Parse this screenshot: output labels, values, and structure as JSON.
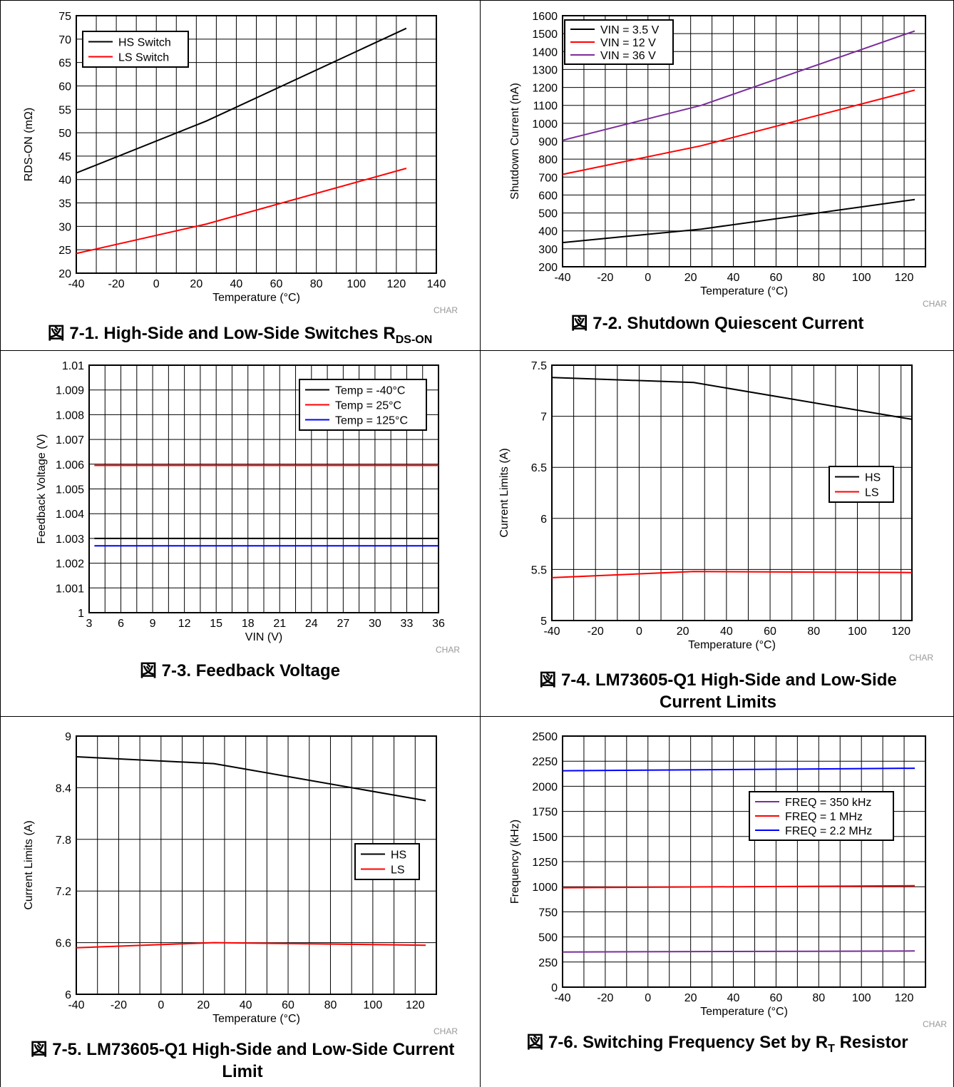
{
  "chart_data": [
    {
      "type": "line",
      "caption": "図 7-1. High-Side and Low-Side Switches R",
      "caption_sub": "DS-ON",
      "xlabel": "Temperature (°C)",
      "ylabel": "RDS-ON (mΩ)",
      "watermark": "CHAR",
      "xlim": [
        -40,
        140
      ],
      "ylim": [
        20,
        75
      ],
      "xticks": [
        "-40",
        "-20",
        "0",
        "20",
        "40",
        "60",
        "80",
        "100",
        "120",
        "140"
      ],
      "yticks": [
        "20",
        "25",
        "30",
        "35",
        "40",
        "45",
        "50",
        "55",
        "60",
        "65",
        "70",
        "75"
      ],
      "grid": true,
      "legend_position": "top-left",
      "series": [
        {
          "name": "HS Switch",
          "color": "#000000",
          "x": [
            -40,
            25,
            125
          ],
          "y": [
            41.4,
            52.5,
            72.3
          ]
        },
        {
          "name": "LS Switch",
          "color": "#ff0000",
          "x": [
            -40,
            25,
            125
          ],
          "y": [
            24.2,
            30.5,
            42.4
          ]
        }
      ]
    },
    {
      "type": "line",
      "caption": "図 7-2. Shutdown Quiescent Current",
      "xlabel": "Temperature (°C)",
      "ylabel": "Shutdown Current (nA)",
      "watermark": "CHAR",
      "xlim": [
        -40,
        130
      ],
      "ylim": [
        200,
        1600
      ],
      "xticks": [
        "-40",
        "-20",
        "0",
        "20",
        "40",
        "60",
        "80",
        "100",
        "120"
      ],
      "yticks": [
        "200",
        "300",
        "400",
        "500",
        "600",
        "700",
        "800",
        "900",
        "1000",
        "1100",
        "1200",
        "1300",
        "1400",
        "1500",
        "1600"
      ],
      "grid": true,
      "legend_position": "top-left",
      "series": [
        {
          "name": "VIN = 3.5 V",
          "color": "#000000",
          "x": [
            -40,
            25,
            125
          ],
          "y": [
            335,
            410,
            575
          ]
        },
        {
          "name": "VIN = 12 V",
          "color": "#ff0000",
          "x": [
            -40,
            25,
            125
          ],
          "y": [
            715,
            875,
            1185
          ]
        },
        {
          "name": "VIN = 36 V",
          "color": "#7b2d9a",
          "x": [
            -40,
            25,
            125
          ],
          "y": [
            905,
            1100,
            1515
          ]
        }
      ]
    },
    {
      "type": "line",
      "caption": "図 7-3. Feedback Voltage",
      "xlabel": "VIN (V)",
      "ylabel": "Feedback Voltage (V)",
      "watermark": "CHAR",
      "xlim": [
        3,
        36
      ],
      "ylim": [
        1,
        1.01
      ],
      "xticks": [
        "3",
        "6",
        "9",
        "12",
        "15",
        "18",
        "21",
        "24",
        "27",
        "30",
        "33",
        "36"
      ],
      "yticks": [
        "1",
        "1.001",
        "1.002",
        "1.003",
        "1.004",
        "1.005",
        "1.006",
        "1.007",
        "1.008",
        "1.009",
        "1.01"
      ],
      "grid": true,
      "legend_position": "top-right",
      "series": [
        {
          "name": "Temp = -40°C",
          "color": "#000000",
          "x": [
            3.5,
            36
          ],
          "y": [
            1.003,
            1.003
          ]
        },
        {
          "name": "Temp = 25°C",
          "color": "#ff0000",
          "x": [
            3.5,
            36
          ],
          "y": [
            1.00595,
            1.00595
          ]
        },
        {
          "name": "Temp = 125°C",
          "color": "#0000ff",
          "x": [
            3.5,
            36
          ],
          "y": [
            1.0027,
            1.0027
          ]
        }
      ]
    },
    {
      "type": "line",
      "caption": "図 7-4. LM73605-Q1 High-Side and Low-Side Current Limits",
      "xlabel": "Temperature (°C)",
      "ylabel": "Current Limits (A)",
      "watermark": "CHAR",
      "xlim": [
        -40,
        125
      ],
      "ylim": [
        5,
        7.5
      ],
      "xticks": [
        "-40",
        "-20",
        "0",
        "20",
        "40",
        "60",
        "80",
        "100",
        "120"
      ],
      "yticks": [
        "5",
        "5.5",
        "6",
        "6.5",
        "7",
        "7.5"
      ],
      "grid": true,
      "legend_position": "right",
      "series": [
        {
          "name": "HS",
          "color": "#000000",
          "x": [
            -40,
            25,
            125
          ],
          "y": [
            7.38,
            7.33,
            6.97
          ]
        },
        {
          "name": "LS",
          "color": "#ff0000",
          "x": [
            -40,
            25,
            125
          ],
          "y": [
            5.42,
            5.48,
            5.47
          ]
        }
      ]
    },
    {
      "type": "line",
      "caption": "図 7-5. LM73605-Q1 High-Side and Low-Side Current Limit",
      "xlabel": "Temperature (°C)",
      "ylabel": "Current Limits (A)",
      "watermark": "CHAR",
      "xlim": [
        -40,
        130
      ],
      "ylim": [
        6,
        9
      ],
      "xticks": [
        "-40",
        "-20",
        "0",
        "20",
        "40",
        "60",
        "80",
        "100",
        "120"
      ],
      "yticks": [
        "6",
        "6.6",
        "7.2",
        "7.8",
        "8.4",
        "9"
      ],
      "grid": true,
      "legend_position": "right",
      "series": [
        {
          "name": "HS",
          "color": "#000000",
          "x": [
            -40,
            25,
            125
          ],
          "y": [
            8.76,
            8.68,
            8.25
          ]
        },
        {
          "name": "LS",
          "color": "#ff0000",
          "x": [
            -40,
            25,
            125
          ],
          "y": [
            6.54,
            6.6,
            6.57
          ]
        }
      ]
    },
    {
      "type": "line",
      "caption": "図 7-6. Switching Frequency Set by R",
      "caption_sub": "T",
      "caption_tail": " Resistor",
      "xlabel": "Temperature (°C)",
      "ylabel": "Frequency (kHz)",
      "watermark": "CHAR",
      "xlim": [
        -40,
        130
      ],
      "ylim": [
        0,
        2500
      ],
      "xticks": [
        "-40",
        "-20",
        "0",
        "20",
        "40",
        "60",
        "80",
        "100",
        "120"
      ],
      "yticks": [
        "0",
        "250",
        "500",
        "750",
        "1000",
        "1250",
        "1500",
        "1750",
        "2000",
        "2250",
        "2500"
      ],
      "grid": true,
      "legend_position": "right",
      "series": [
        {
          "name": "FREQ = 350 kHz",
          "color": "#7b2d9a",
          "x": [
            -40,
            125
          ],
          "y": [
            350,
            360
          ]
        },
        {
          "name": "FREQ = 1 MHz",
          "color": "#ff0000",
          "x": [
            -40,
            125
          ],
          "y": [
            990,
            1010
          ]
        },
        {
          "name": "FREQ = 2.2 MHz",
          "color": "#0000ff",
          "x": [
            -40,
            125
          ],
          "y": [
            2155,
            2180
          ]
        }
      ]
    }
  ]
}
